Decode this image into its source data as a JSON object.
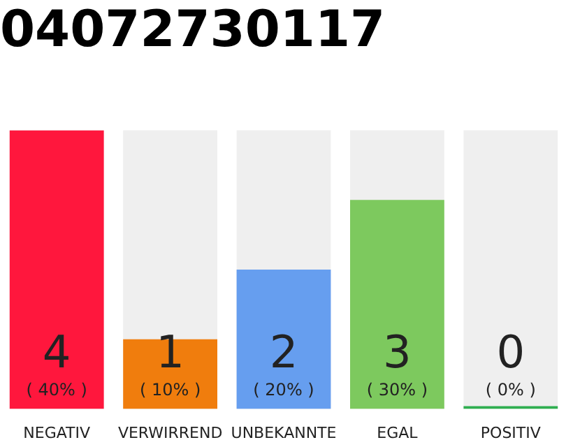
{
  "chart_data": {
    "type": "bar",
    "title": "04072730117",
    "categories": [
      "NEGATIV",
      "VERWIRREND",
      "UNBEKANNTE",
      "EGAL",
      "POSITIV"
    ],
    "values": [
      4,
      1,
      2,
      3,
      0
    ],
    "colors": [
      "#ff173d",
      "#f07d0d",
      "#669eef",
      "#7dc95e",
      "#2fae50"
    ],
    "ylim": [
      0,
      4
    ],
    "tick_labels": "x",
    "data_labels": true,
    "legend": false,
    "annotations": [
      "( 40% )",
      "( 10% )",
      "( 20% )",
      "( 30% )",
      "( 0% )"
    ]
  }
}
